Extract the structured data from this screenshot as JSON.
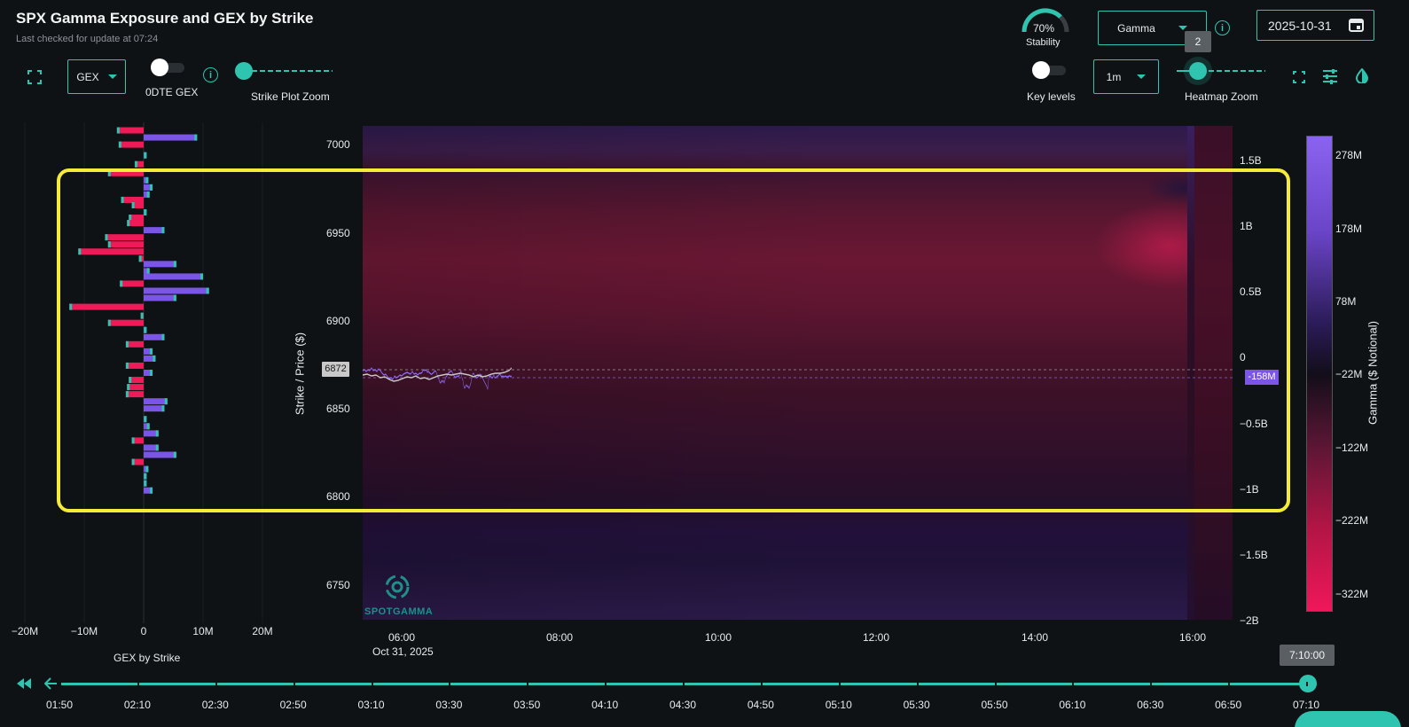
{
  "header": {
    "title": "SPX Gamma Exposure and GEX by Strike",
    "subtitle": "Last checked for update at 07:24"
  },
  "controls": {
    "gex_dropdown": "GEX",
    "odte_label": "0DTE GEX",
    "strike_zoom_label": "Strike Plot Zoom",
    "stability_value": "70%",
    "stability_label": "Stability",
    "gamma_dropdown": "Gamma",
    "date_value": "2025-10-31",
    "key_levels_label": "Key levels",
    "interval_dropdown": "1m",
    "heatmap_zoom_label": "Heatmap Zoom",
    "heatmap_zoom_tooltip": "2"
  },
  "strike_chart": {
    "x_tick_labels": [
      "−20M",
      "−10M",
      "0",
      "10M",
      "20M"
    ],
    "x_label": "GEX by Strike",
    "bars": [
      {
        "strike": 7004,
        "value": -4.5
      },
      {
        "strike": 7000,
        "value": 9.0
      },
      {
        "strike": 6996,
        "value": -4.2
      },
      {
        "strike": 6990,
        "value": 0.5
      },
      {
        "strike": 6985,
        "value": -1.5
      },
      {
        "strike": 6980,
        "value": -6.0
      },
      {
        "strike": 6976,
        "value": 0.8
      },
      {
        "strike": 6972,
        "value": 1.5
      },
      {
        "strike": 6968,
        "value": 1.0
      },
      {
        "strike": 6965,
        "value": -3.8
      },
      {
        "strike": 6962,
        "value": -2.0
      },
      {
        "strike": 6958,
        "value": 0.5
      },
      {
        "strike": 6955,
        "value": -2.5
      },
      {
        "strike": 6952,
        "value": -2.8
      },
      {
        "strike": 6948,
        "value": 3.5
      },
      {
        "strike": 6944,
        "value": -6.5
      },
      {
        "strike": 6940,
        "value": -6.0
      },
      {
        "strike": 6936,
        "value": -11.0
      },
      {
        "strike": 6932,
        "value": -0.8
      },
      {
        "strike": 6929,
        "value": 5.5
      },
      {
        "strike": 6925,
        "value": 1.0
      },
      {
        "strike": 6922,
        "value": 10.0
      },
      {
        "strike": 6918,
        "value": -4.0
      },
      {
        "strike": 6914,
        "value": 11.0
      },
      {
        "strike": 6910,
        "value": 5.5
      },
      {
        "strike": 6905,
        "value": -12.5
      },
      {
        "strike": 6900,
        "value": -0.5
      },
      {
        "strike": 6896,
        "value": -6.0
      },
      {
        "strike": 6892,
        "value": 0.5
      },
      {
        "strike": 6888,
        "value": 3.5
      },
      {
        "strike": 6884,
        "value": -3.0
      },
      {
        "strike": 6880,
        "value": 1.5
      },
      {
        "strike": 6876,
        "value": 2.0
      },
      {
        "strike": 6872,
        "value": -3.0
      },
      {
        "strike": 6868,
        "value": 1.5
      },
      {
        "strike": 6864,
        "value": -2.5
      },
      {
        "strike": 6860,
        "value": -2.8
      },
      {
        "strike": 6856,
        "value": -3.0
      },
      {
        "strike": 6852,
        "value": 4.0
      },
      {
        "strike": 6848,
        "value": 3.5
      },
      {
        "strike": 6842,
        "value": 0.5
      },
      {
        "strike": 6838,
        "value": 1.0
      },
      {
        "strike": 6834,
        "value": 2.5
      },
      {
        "strike": 6830,
        "value": -2.0
      },
      {
        "strike": 6826,
        "value": 2.5
      },
      {
        "strike": 6822,
        "value": 5.5
      },
      {
        "strike": 6818,
        "value": -2.0
      },
      {
        "strike": 6814,
        "value": 0.8
      },
      {
        "strike": 6810,
        "value": 0.5
      },
      {
        "strike": 6806,
        "value": 0.5
      },
      {
        "strike": 6802,
        "value": 1.5
      }
    ]
  },
  "heatmap": {
    "y_axis_label": "Strike / Price ($)",
    "y_ticks": [
      "7000",
      "6950",
      "6900",
      "6850",
      "6800",
      "6750"
    ],
    "price_label": "6872",
    "right_ticks": [
      "1.5B",
      "1B",
      "0.5B",
      "0",
      "−0.5B",
      "−1B",
      "−1.5B",
      "−2B"
    ],
    "gex_marker": "-158M",
    "x_ticks": [
      "06:00",
      "08:00",
      "10:00",
      "12:00",
      "14:00",
      "16:00"
    ],
    "x_date": "Oct 31, 2025",
    "watermark": "SPOTGAMMA"
  },
  "colorbar": {
    "label": "Gamma ($ Notional)",
    "ticks": [
      "278M",
      "178M",
      "78M",
      "−22M",
      "−122M",
      "−222M",
      "−322M"
    ]
  },
  "timeline": {
    "labels": [
      "01:50",
      "02:10",
      "02:30",
      "02:50",
      "03:10",
      "03:30",
      "03:50",
      "04:10",
      "04:30",
      "04:50",
      "05:10",
      "05:30",
      "05:50",
      "06:10",
      "06:30",
      "06:50",
      "07:10"
    ],
    "current_tooltip": "7:10:00"
  },
  "colors": {
    "accent": "#2ec4b0",
    "positive_bar": "#7b55e6",
    "negative_bar": "#ef1a58",
    "highlight": "#f5ec3a"
  }
}
